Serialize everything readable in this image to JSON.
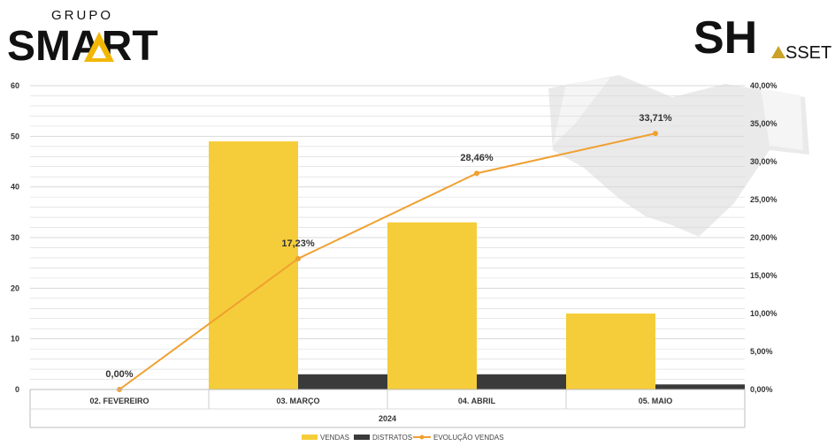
{
  "logos": {
    "left_top": "GRUPO",
    "left_main": "SMART",
    "right_main": "SH",
    "right_sub": "SSET"
  },
  "colors": {
    "vendas": "#f5cd3a",
    "distratos": "#3a3a3a",
    "evolucao": "#f0a030",
    "grid": "#d8d8d8",
    "watermark": "#e6e6e6"
  },
  "chart_data": {
    "type": "bar",
    "xlabel": "2024",
    "categories": [
      "02. FEVEREIRO",
      "03. MARÇO",
      "04. ABRIL",
      "05. MAIO"
    ],
    "ylim": [
      0,
      60
    ],
    "y_ticks": [
      "0",
      "10",
      "20",
      "30",
      "40",
      "50",
      "60"
    ],
    "y2lim": [
      0,
      0.4
    ],
    "y2_ticks": [
      "0,00%",
      "5,00%",
      "10,00%",
      "15,00%",
      "20,00%",
      "25,00%",
      "30,00%",
      "35,00%",
      "40,00%"
    ],
    "series": [
      {
        "name": "VENDAS",
        "type": "bar",
        "values": [
          0,
          49,
          33,
          15
        ]
      },
      {
        "name": "DISTRATOS",
        "type": "bar",
        "values": [
          0,
          3,
          3,
          1
        ]
      },
      {
        "name": "EVOLUÇÃO VENDAS",
        "type": "line",
        "axis": "secondary",
        "values": [
          0.0,
          0.1723,
          0.2846,
          0.3371
        ],
        "labels": [
          "0,00%",
          "17,23%",
          "28,46%",
          "33,71%"
        ]
      }
    ],
    "legend_position": "bottom",
    "grid": true
  }
}
